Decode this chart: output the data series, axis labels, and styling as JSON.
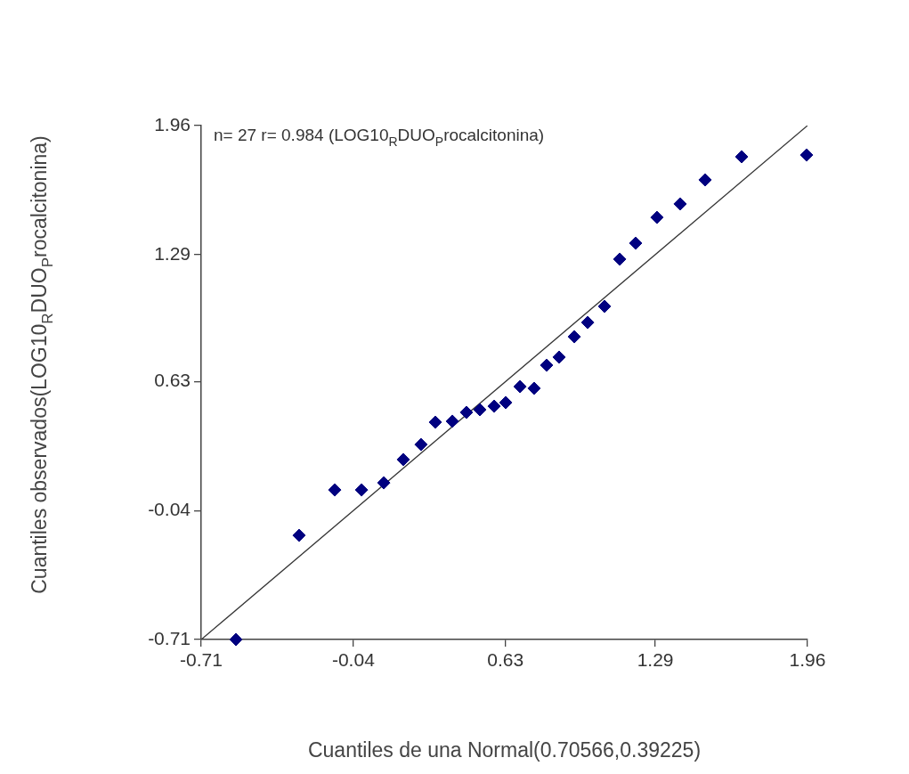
{
  "chart_data": {
    "type": "scatter",
    "xlabel": "Cuantiles de una Normal(0.70566,0.39225)",
    "ylabel": "Cuantiles observados(LOG10$_{R}$DUO$_{P}$rocalcitonina)",
    "annotations": [
      "n= 27 r= 0.984 (LOG10$_{R}$DUO$_{P}$rocalcitonina)"
    ],
    "xlim": [
      -0.71,
      1.96
    ],
    "ylim": [
      -0.71,
      1.96
    ],
    "xticks": [
      -0.71,
      -0.04,
      0.63,
      1.29,
      1.96
    ],
    "yticks": [
      -0.71,
      -0.04,
      0.63,
      1.29,
      1.96
    ],
    "legend": false,
    "series": [
      {
        "marker": "diamond",
        "color": "#000080",
        "x": [
          -0.557,
          -0.279,
          -0.122,
          -0.004,
          0.094,
          0.18,
          0.258,
          0.321,
          0.396,
          0.458,
          0.517,
          0.58,
          0.631,
          0.694,
          0.756,
          0.811,
          0.866,
          0.933,
          0.992,
          1.066,
          1.133,
          1.203,
          1.297,
          1.399,
          1.509,
          1.67,
          1.956
        ],
        "values": [
          -0.71,
          -0.169,
          0.067,
          0.067,
          0.104,
          0.225,
          0.303,
          0.419,
          0.424,
          0.47,
          0.484,
          0.502,
          0.521,
          0.604,
          0.595,
          0.715,
          0.757,
          0.863,
          0.937,
          1.021,
          1.266,
          1.349,
          1.483,
          1.553,
          1.678,
          1.798,
          1.807
        ]
      },
      {
        "type": "line",
        "marker": "none",
        "color": "#333333",
        "x": [
          -0.71,
          1.96
        ],
        "values": [
          -0.71,
          1.96
        ]
      }
    ]
  }
}
